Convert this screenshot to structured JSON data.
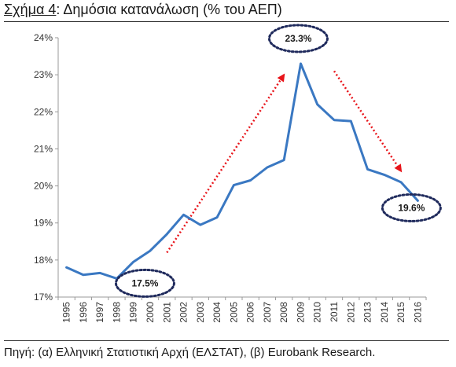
{
  "title": {
    "figure_label": "Σχήμα 4",
    "text": ": Δημόσια κατανάλωση (% του ΑΕΠ)"
  },
  "source": "Πηγή: (α) Ελληνική Στατιστική Αρχή (ΕΛΣΤΑΤ), (β) Eurobank Research.",
  "chart_data": {
    "type": "line",
    "title": "Δημόσια κατανάλωση (% του ΑΕΠ)",
    "xlabel": "",
    "ylabel": "",
    "x": [
      "1995",
      "1996",
      "1997",
      "1998",
      "1999",
      "2000",
      "2001",
      "2002",
      "2003",
      "2004",
      "2005",
      "2006",
      "2007",
      "2008",
      "2009",
      "2010",
      "2011",
      "2012",
      "2013",
      "2014",
      "2015",
      "2016"
    ],
    "series": [
      {
        "name": "",
        "color": "#3a78c2",
        "values": [
          17.8,
          17.6,
          17.65,
          17.5,
          17.95,
          18.25,
          18.7,
          19.22,
          18.95,
          19.15,
          20.02,
          20.15,
          20.5,
          20.7,
          23.3,
          22.2,
          21.78,
          21.75,
          20.45,
          20.3,
          20.1,
          19.6
        ]
      }
    ],
    "ylim": [
      17,
      24
    ],
    "yticks": [
      "17%",
      "18%",
      "19%",
      "20%",
      "21%",
      "22%",
      "23%",
      "24%"
    ],
    "grid": false,
    "annotations": [
      {
        "label": "17.5%",
        "x": "1998",
        "y": 17.5,
        "style": "dotted-ellipse"
      },
      {
        "label": "23.3%",
        "x": "2009",
        "y": 23.3,
        "style": "dotted-ellipse"
      },
      {
        "label": "19.6%",
        "x": "2016",
        "y": 19.6,
        "style": "dotted-ellipse"
      }
    ],
    "arrows": [
      {
        "from": {
          "x": "2001",
          "y": 18.2
        },
        "to": {
          "x": "2008",
          "y": 23.0
        },
        "color": "#e8141a",
        "style": "dotted"
      },
      {
        "from": {
          "x": "2011",
          "y": 23.1
        },
        "to": {
          "x": "2015",
          "y": 20.4
        },
        "color": "#e8141a",
        "style": "dotted"
      }
    ]
  }
}
